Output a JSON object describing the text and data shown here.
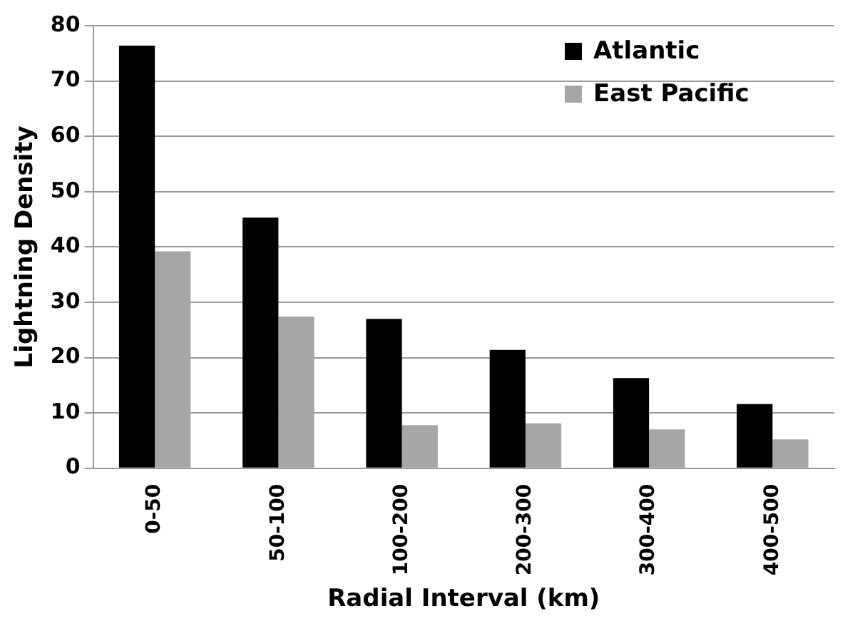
{
  "chart_data": {
    "type": "bar",
    "xlabel": "Radial Interval (km)",
    "ylabel": "Lightning Density",
    "categories": [
      "0-50",
      "50-100",
      "100-200",
      "200-300",
      "300-400",
      "400-500"
    ],
    "series": [
      {
        "name": "Atlantic",
        "color": "#000000",
        "values": [
          76.4,
          45.3,
          27.0,
          21.4,
          16.3,
          11.6
        ]
      },
      {
        "name": "East Pacific",
        "color": "#a6a6a6",
        "values": [
          39.2,
          27.4,
          7.8,
          8.1,
          7.0,
          5.2
        ]
      }
    ],
    "ylim": [
      0,
      80
    ],
    "yticks": [
      0,
      10,
      20,
      30,
      40,
      50,
      60,
      70,
      80
    ],
    "grid": "y",
    "legend": "top right"
  }
}
